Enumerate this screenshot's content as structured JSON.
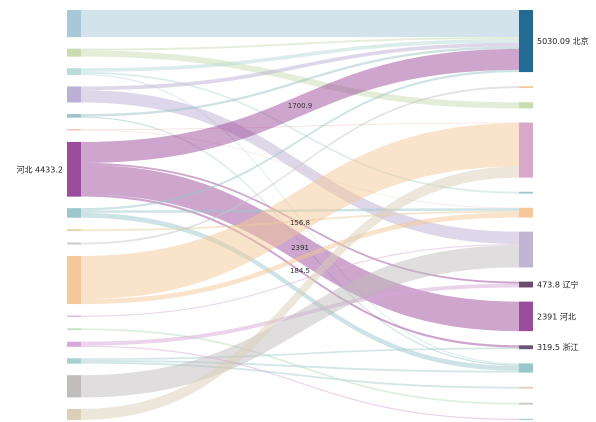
{
  "chart_data": {
    "type": "sankey",
    "nodes": [
      {
        "name": null,
        "color": "#a8c8d8"
      },
      {
        "name": null,
        "color": "#c8dcb0"
      },
      {
        "name": null,
        "color": "#b8dcd8"
      },
      {
        "name": null,
        "color": "#bcb0d4"
      },
      {
        "name": null,
        "color": "#a0c4c8"
      },
      {
        "name": null,
        "color": "#f0b8b0"
      },
      {
        "name": "河北",
        "value": 4433.2,
        "color": "#9c4c9c"
      },
      {
        "name": null,
        "color": "#9cc8cc"
      },
      {
        "name": null,
        "color": "#e8d0a0"
      },
      {
        "name": null,
        "color": "#c8c8c8"
      },
      {
        "name": null,
        "color": "#f4c898"
      },
      {
        "name": null,
        "color": "#d8b0d8"
      },
      {
        "name": null,
        "color": "#c0e0c0"
      },
      {
        "name": null,
        "color": "#d8a8d8"
      },
      {
        "name": null,
        "color": "#a8d0d0"
      },
      {
        "name": null,
        "color": "#c0bcbc"
      },
      {
        "name": null,
        "color": "#dccfb8"
      },
      {
        "name": "北京",
        "value": 5030.09,
        "color": "#236b94"
      },
      {
        "name": null,
        "color": "#f4c898"
      },
      {
        "name": null,
        "color": "#c8dcb0"
      },
      {
        "name": null,
        "color": "#d8a8c8"
      },
      {
        "name": null,
        "color": "#a0c4c8"
      },
      {
        "name": null,
        "color": "#f4c898"
      },
      {
        "name": null,
        "color": "#c0b4d4"
      },
      {
        "name": "辽宁",
        "value": 473.8,
        "color": "#6b4c6b"
      },
      {
        "name": "河北",
        "value": 2391,
        "color": "#9c4c9c"
      },
      {
        "name": "浙江",
        "value": 319.5,
        "color": "#6b5878"
      },
      {
        "name": null,
        "color": "#98c8cc"
      },
      {
        "name": null,
        "color": "#e0d0c0"
      },
      {
        "name": null,
        "color": "#c8c8c8"
      },
      {
        "name": null,
        "color": "#a8d0d8"
      }
    ],
    "links": [
      {
        "source": 0,
        "target": 17,
        "value": 2200
      },
      {
        "source": 1,
        "target": 19,
        "value": 500
      },
      {
        "source": 1,
        "target": 17,
        "value": 150
      },
      {
        "source": 2,
        "target": 17,
        "value": 300
      },
      {
        "source": 2,
        "target": 21,
        "value": 150
      },
      {
        "source": 2,
        "target": 27,
        "value": 100
      },
      {
        "source": 3,
        "target": 23,
        "value": 1000
      },
      {
        "source": 3,
        "target": 17,
        "value": 300
      },
      {
        "source": 4,
        "target": 17,
        "value": 200
      },
      {
        "source": 4,
        "target": 27,
        "value": 100
      },
      {
        "source": 5,
        "target": 20,
        "value": 60
      },
      {
        "source": 5,
        "target": 22,
        "value": 40
      },
      {
        "source": 6,
        "target": 17,
        "value": 1700.9,
        "labeled": true
      },
      {
        "source": 6,
        "target": 24,
        "value": 156.8,
        "labeled": true
      },
      {
        "source": 6,
        "target": 25,
        "value": 2391,
        "labeled": true
      },
      {
        "source": 6,
        "target": 26,
        "value": 184.5,
        "labeled": true
      },
      {
        "source": 7,
        "target": 27,
        "value": 400
      },
      {
        "source": 7,
        "target": 17,
        "value": 179.19
      },
      {
        "source": 7,
        "target": 22,
        "value": 200
      },
      {
        "source": 8,
        "target": 22,
        "value": 150
      },
      {
        "source": 9,
        "target": 18,
        "value": 150
      },
      {
        "source": 10,
        "target": 20,
        "value": 3500
      },
      {
        "source": 10,
        "target": 22,
        "value": 400
      },
      {
        "source": 11,
        "target": 23,
        "value": 100
      },
      {
        "source": 12,
        "target": 29,
        "value": 150
      },
      {
        "source": 13,
        "target": 24,
        "value": 317
      },
      {
        "source": 14,
        "target": 28,
        "value": 150
      },
      {
        "source": 14,
        "target": 27,
        "value": 150
      },
      {
        "source": 14,
        "target": 26,
        "value": 135
      },
      {
        "source": 15,
        "target": 23,
        "value": 1800
      },
      {
        "source": 16,
        "target": 20,
        "value": 900
      },
      {
        "source": 13,
        "target": 30,
        "value": 100
      }
    ]
  }
}
